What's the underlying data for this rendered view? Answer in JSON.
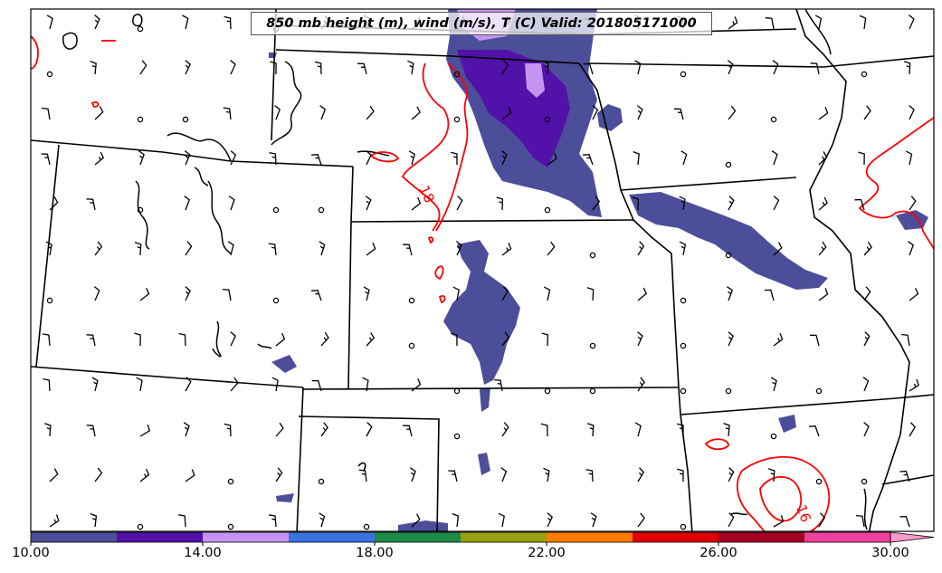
{
  "map": {
    "title": "850 mb height (m), wind (m/s), T (C) Valid: 201805171000",
    "contour_labels": [
      {
        "text": "18"
      },
      {
        "text": "16"
      }
    ],
    "contour_color": "#ff0000",
    "boundary_color": "#000000",
    "background": "#ffffff"
  },
  "colorbar": {
    "ticks": [
      "10.00",
      "14.00",
      "18.00",
      "22.00",
      "26.00",
      "30.00"
    ],
    "bins": [
      {
        "from": 10,
        "to": 12,
        "color": "#4c4e9a"
      },
      {
        "from": 12,
        "to": 14,
        "color": "#5211a8"
      },
      {
        "from": 14,
        "to": 16,
        "color": "#c494f0"
      },
      {
        "from": 16,
        "to": 18,
        "color": "#3b73e0"
      },
      {
        "from": 18,
        "to": 20,
        "color": "#1e8a47"
      },
      {
        "from": 20,
        "to": 22,
        "color": "#9aa011"
      },
      {
        "from": 22,
        "to": 24,
        "color": "#ff7a00"
      },
      {
        "from": 24,
        "to": 26,
        "color": "#e00000"
      },
      {
        "from": 26,
        "to": 28,
        "color": "#a30023"
      },
      {
        "from": 28,
        "to": 30,
        "color": "#f0409e"
      }
    ],
    "extend_max_color": "#f89cd0"
  }
}
